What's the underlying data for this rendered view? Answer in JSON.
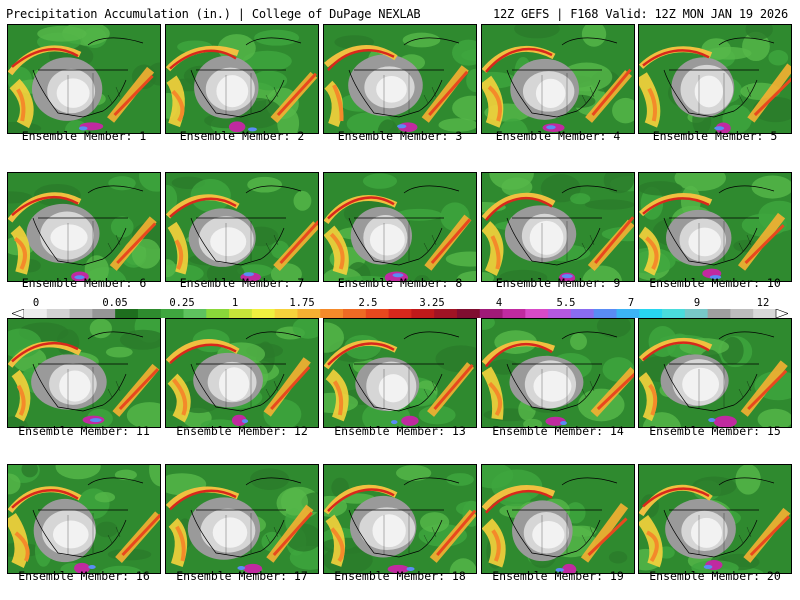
{
  "header": {
    "title": "Precipitation Accumulation (in.) | College of DuPage NEXLAB",
    "run_info": "12Z GEFS | F168 Valid: 12Z MON JAN 19 2026"
  },
  "colorbar": {
    "labels": [
      "0",
      "0.05",
      "0.25",
      "1",
      "1.75",
      "2.5",
      "3.25",
      "4",
      "5.5",
      "7",
      "9",
      "12"
    ],
    "colors": [
      "#ececec",
      "#d2d2d2",
      "#b4b4b4",
      "#969696",
      "#1e6e1e",
      "#2e8b2e",
      "#3fa63f",
      "#5ec25e",
      "#8ad83a",
      "#c8e63a",
      "#f0f040",
      "#f6d23c",
      "#f6b032",
      "#f48a2a",
      "#ee6a24",
      "#e8481e",
      "#d8281c",
      "#c01a1a",
      "#a01424",
      "#800e30",
      "#a01a78",
      "#c02aa0",
      "#d84ac8",
      "#b458e0",
      "#8a6cf0",
      "#5a8cf5",
      "#3cb4f5",
      "#28d6f0",
      "#4adcdc",
      "#78c8c8",
      "#a0a0a0",
      "#bcbcbc",
      "#d8d8d8"
    ]
  },
  "panels": [
    {
      "label": "Ensemble Member: 1"
    },
    {
      "label": "Ensemble Member: 2"
    },
    {
      "label": "Ensemble Member: 3"
    },
    {
      "label": "Ensemble Member: 4"
    },
    {
      "label": "Ensemble Member: 5"
    },
    {
      "label": "Ensemble Member: 6"
    },
    {
      "label": "Ensemble Member: 7"
    },
    {
      "label": "Ensemble Member: 8"
    },
    {
      "label": "Ensemble Member: 9"
    },
    {
      "label": "Ensemble Member: 10"
    },
    {
      "label": "Ensemble Member: 11"
    },
    {
      "label": "Ensemble Member: 12"
    },
    {
      "label": "Ensemble Member: 13"
    },
    {
      "label": "Ensemble Member: 14"
    },
    {
      "label": "Ensemble Member: 15"
    },
    {
      "label": "Ensemble Member: 16"
    },
    {
      "label": "Ensemble Member: 17"
    },
    {
      "label": "Ensemble Member: 18"
    },
    {
      "label": "Ensemble Member: 19"
    },
    {
      "label": "Ensemble Member: 20"
    }
  ]
}
